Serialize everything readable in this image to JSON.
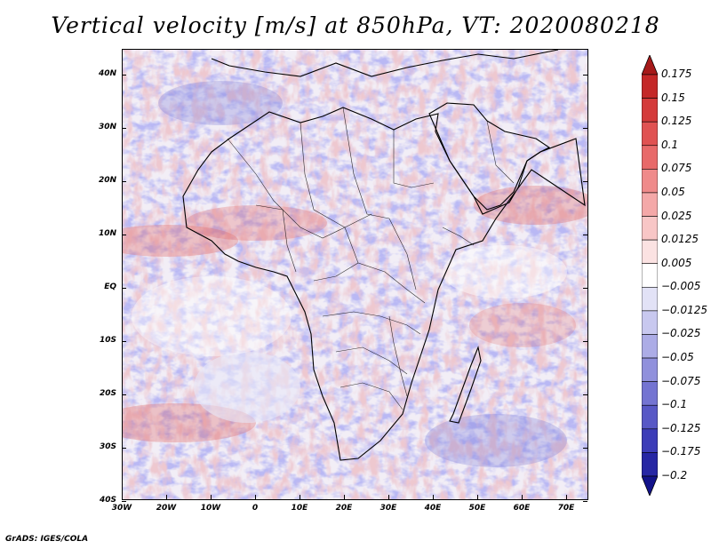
{
  "title": "Vertical velocity [m/s] at 850hPa, VT: 2020080218",
  "footer": "GrADS: IGES/COLA",
  "map": {
    "projection": "lat-lon",
    "lat_range": [
      -40,
      45
    ],
    "lon_range": [
      -30,
      75
    ],
    "lat_labels": [
      "40N",
      "30N",
      "20N",
      "10N",
      "EQ",
      "10S",
      "20S",
      "30S",
      "40S"
    ],
    "lon_labels": [
      "30W",
      "20W",
      "10W",
      "0",
      "10E",
      "20E",
      "30E",
      "40E",
      "50E",
      "60E",
      "70E"
    ]
  },
  "colorbar": {
    "labels": [
      "0.175",
      "0.15",
      "0.125",
      "0.1",
      "0.075",
      "0.05",
      "0.025",
      "0.0125",
      "0.005",
      "−0.005",
      "−0.0125",
      "−0.025",
      "−0.05",
      "−0.075",
      "−0.1",
      "−0.125",
      "−0.175",
      "−0.2"
    ],
    "colors": [
      "#a61a1a",
      "#c42828",
      "#d43a3a",
      "#e05252",
      "#e86a6a",
      "#ef8a8a",
      "#f4a8a8",
      "#f8c6c6",
      "#fbe2e2",
      "#ffffff",
      "#e2e2f6",
      "#c8c8ef",
      "#acace6",
      "#9090dc",
      "#7474d2",
      "#5858c6",
      "#3c3cb8",
      "#2626a4",
      "#12128a"
    ]
  }
}
